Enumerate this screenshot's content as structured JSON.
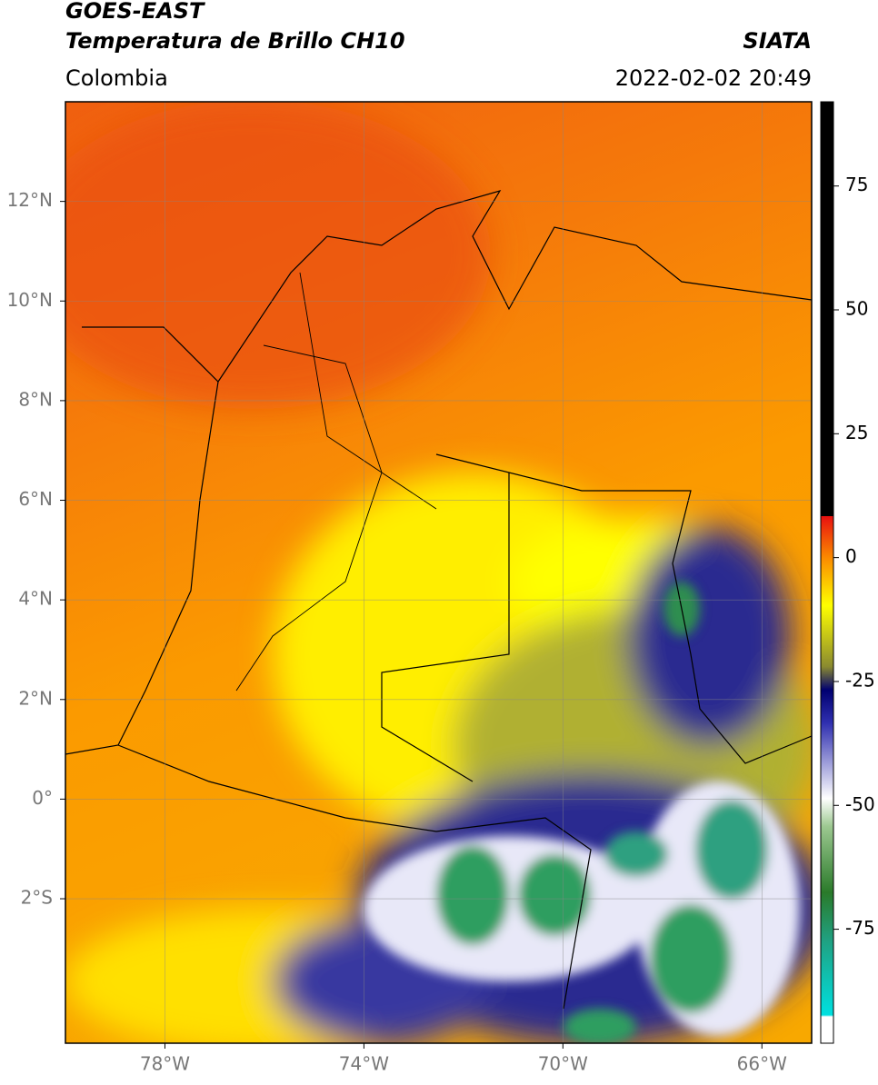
{
  "header": {
    "title": "GOES-EAST",
    "subtitle": "Temperatura de Brillo CH10",
    "region": "Colombia",
    "source": "SIATA",
    "datetime": "2022-02-02 20:49"
  },
  "map": {
    "xlim": [
      -80,
      -65
    ],
    "ylim": [
      -4.9,
      14
    ],
    "xticks": [
      {
        "value": -78,
        "label": "78°W"
      },
      {
        "value": -74,
        "label": "74°W"
      },
      {
        "value": -70,
        "label": "70°W"
      },
      {
        "value": -66,
        "label": "66°W"
      }
    ],
    "yticks": [
      {
        "value": 12,
        "label": "12°N"
      },
      {
        "value": 10,
        "label": "10°N"
      },
      {
        "value": 8,
        "label": "8°N"
      },
      {
        "value": 6,
        "label": "6°N"
      },
      {
        "value": 4,
        "label": "4°N"
      },
      {
        "value": 2,
        "label": "2°N"
      },
      {
        "value": 0,
        "label": "0°"
      },
      {
        "value": -2,
        "label": "2°S"
      }
    ]
  },
  "colorbar": {
    "lim": [
      -98,
      92
    ],
    "ticks": [
      75,
      50,
      25,
      0,
      -25,
      -50,
      -75
    ]
  }
}
